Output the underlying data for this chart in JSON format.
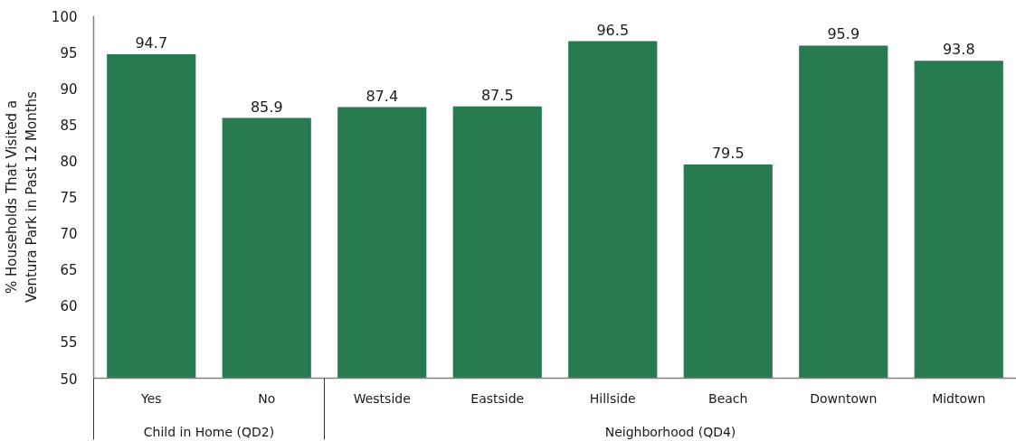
{
  "chart_data": {
    "type": "bar",
    "ylabel": "% Households That Visited a Ventura Park in Past 12 Months",
    "categories": [
      "Yes",
      "No",
      "Westside",
      "Eastside",
      "Hillside",
      "Beach",
      "Downtown",
      "Midtown"
    ],
    "values": [
      94.7,
      85.9,
      87.4,
      87.5,
      96.5,
      79.5,
      95.9,
      93.8
    ],
    "color": "#287a50",
    "data_labels": true,
    "ylim": [
      50,
      100
    ],
    "yticks": [
      50,
      55,
      60,
      65,
      70,
      75,
      80,
      85,
      90,
      95,
      100
    ],
    "annotations": [
      "Child in Home (QD2)",
      "Neighborhood (QD4)"
    ]
  }
}
